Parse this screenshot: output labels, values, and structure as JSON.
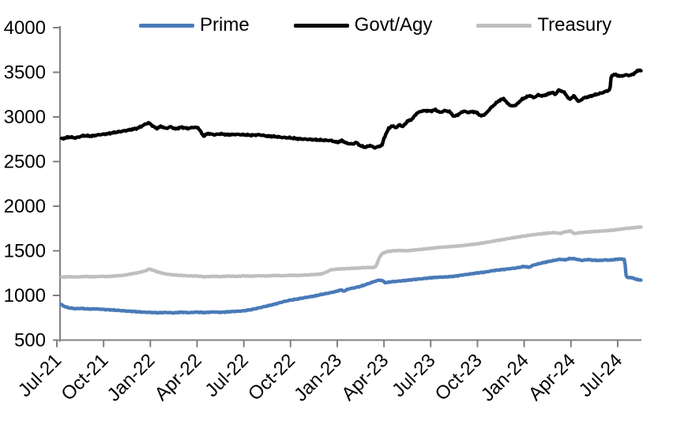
{
  "chart_data": {
    "type": "line",
    "title": "",
    "x_encoding": "months since Jul-21",
    "x_axis": {
      "range_months": [
        0,
        37.5
      ],
      "ticks": [
        {
          "label": "Jul-21",
          "month": 0
        },
        {
          "label": "Oct-21",
          "month": 3
        },
        {
          "label": "Jan-22",
          "month": 6
        },
        {
          "label": "Apr-22",
          "month": 9
        },
        {
          "label": "Jul-22",
          "month": 12
        },
        {
          "label": "Oct-22",
          "month": 15
        },
        {
          "label": "Jan-23",
          "month": 18
        },
        {
          "label": "Apr-23",
          "month": 21
        },
        {
          "label": "Jul-23",
          "month": 24
        },
        {
          "label": "Oct-23",
          "month": 27
        },
        {
          "label": "Jan-24",
          "month": 30
        },
        {
          "label": "Apr-24",
          "month": 33
        },
        {
          "label": "Jul-24",
          "month": 36
        }
      ]
    },
    "y_axis": {
      "min": 500,
      "max": 4000,
      "step": 500,
      "ticks": [
        {
          "label": "500",
          "value": 500
        },
        {
          "label": "1000",
          "value": 1000
        },
        {
          "label": "1500",
          "value": 1500
        },
        {
          "label": "2000",
          "value": 2000
        },
        {
          "label": "2500",
          "value": 2500
        },
        {
          "label": "3000",
          "value": 3000
        },
        {
          "label": "3500",
          "value": 3500
        },
        {
          "label": "4000",
          "value": 4000
        }
      ]
    },
    "grid": "off",
    "legend": {
      "position": "top",
      "items": [
        {
          "label": "Prime",
          "color": "#4a7ab8"
        },
        {
          "label": "Govt/Agy",
          "color": "#000000"
        },
        {
          "label": "Treasury",
          "color": "#bfbfbf"
        }
      ]
    },
    "axis_color": "#808080",
    "series": [
      {
        "name": "Prime",
        "color": "#4a7ab8",
        "points": [
          [
            0.3,
            895
          ],
          [
            0.5,
            875
          ],
          [
            0.8,
            860
          ],
          [
            1.2,
            852
          ],
          [
            1.6,
            855
          ],
          [
            2,
            848
          ],
          [
            2.5,
            850
          ],
          [
            3,
            843
          ],
          [
            3.5,
            838
          ],
          [
            4,
            832
          ],
          [
            4.5,
            825
          ],
          [
            5,
            820
          ],
          [
            5.5,
            813
          ],
          [
            6,
            810
          ],
          [
            6.5,
            806
          ],
          [
            7,
            810
          ],
          [
            7.5,
            805
          ],
          [
            8,
            812
          ],
          [
            8.5,
            807
          ],
          [
            9,
            813
          ],
          [
            9.5,
            808
          ],
          [
            10,
            815
          ],
          [
            10.5,
            811
          ],
          [
            11,
            817
          ],
          [
            11.5,
            822
          ],
          [
            12,
            828
          ],
          [
            12.5,
            842
          ],
          [
            13,
            862
          ],
          [
            13.5,
            882
          ],
          [
            14,
            903
          ],
          [
            14.5,
            928
          ],
          [
            15,
            948
          ],
          [
            15.5,
            962
          ],
          [
            16,
            978
          ],
          [
            16.5,
            992
          ],
          [
            17,
            1012
          ],
          [
            17.5,
            1028
          ],
          [
            18,
            1048
          ],
          [
            18.2,
            1062
          ],
          [
            18.45,
            1048
          ],
          [
            18.7,
            1072
          ],
          [
            19,
            1082
          ],
          [
            19.5,
            1102
          ],
          [
            20,
            1132
          ],
          [
            20.4,
            1158
          ],
          [
            20.7,
            1172
          ],
          [
            20.9,
            1165
          ],
          [
            21.1,
            1142
          ],
          [
            21.4,
            1152
          ],
          [
            21.8,
            1158
          ],
          [
            22.2,
            1165
          ],
          [
            22.6,
            1172
          ],
          [
            23,
            1180
          ],
          [
            23.5,
            1188
          ],
          [
            24,
            1198
          ],
          [
            24.5,
            1204
          ],
          [
            25,
            1208
          ],
          [
            25.5,
            1214
          ],
          [
            26,
            1228
          ],
          [
            26.5,
            1240
          ],
          [
            27,
            1252
          ],
          [
            27.5,
            1262
          ],
          [
            28,
            1278
          ],
          [
            28.5,
            1288
          ],
          [
            29,
            1298
          ],
          [
            29.5,
            1308
          ],
          [
            30,
            1325
          ],
          [
            30.3,
            1315
          ],
          [
            30.6,
            1340
          ],
          [
            31,
            1358
          ],
          [
            31.5,
            1378
          ],
          [
            32,
            1395
          ],
          [
            32.3,
            1405
          ],
          [
            32.6,
            1398
          ],
          [
            33,
            1415
          ],
          [
            33.3,
            1408
          ],
          [
            33.7,
            1392
          ],
          [
            34.1,
            1402
          ],
          [
            34.5,
            1394
          ],
          [
            34.9,
            1392
          ],
          [
            35.2,
            1398
          ],
          [
            35.5,
            1395
          ],
          [
            35.8,
            1402
          ],
          [
            36.1,
            1408
          ],
          [
            36.45,
            1405
          ],
          [
            36.55,
            1205
          ],
          [
            36.8,
            1200
          ],
          [
            37,
            1195
          ],
          [
            37.2,
            1180
          ],
          [
            37.5,
            1172
          ]
        ]
      },
      {
        "name": "Govt/Agy",
        "color": "#000000",
        "points": [
          [
            0.3,
            2755
          ],
          [
            0.8,
            2775
          ],
          [
            1.2,
            2765
          ],
          [
            1.7,
            2790
          ],
          [
            2.2,
            2785
          ],
          [
            2.7,
            2800
          ],
          [
            3.2,
            2810
          ],
          [
            3.7,
            2825
          ],
          [
            4.2,
            2840
          ],
          [
            4.7,
            2855
          ],
          [
            5.2,
            2875
          ],
          [
            5.7,
            2920
          ],
          [
            5.9,
            2935
          ],
          [
            6.1,
            2905
          ],
          [
            6.4,
            2870
          ],
          [
            6.7,
            2895
          ],
          [
            7,
            2870
          ],
          [
            7.3,
            2890
          ],
          [
            7.6,
            2865
          ],
          [
            8,
            2885
          ],
          [
            8.4,
            2870
          ],
          [
            8.8,
            2885
          ],
          [
            9.1,
            2875
          ],
          [
            9.4,
            2785
          ],
          [
            9.7,
            2815
          ],
          [
            10.1,
            2800
          ],
          [
            10.5,
            2810
          ],
          [
            11,
            2800
          ],
          [
            11.5,
            2805
          ],
          [
            12,
            2800
          ],
          [
            12.5,
            2795
          ],
          [
            13,
            2800
          ],
          [
            13.5,
            2785
          ],
          [
            14,
            2780
          ],
          [
            14.5,
            2770
          ],
          [
            15,
            2765
          ],
          [
            15.5,
            2755
          ],
          [
            16,
            2750
          ],
          [
            16.5,
            2745
          ],
          [
            17,
            2740
          ],
          [
            17.6,
            2735
          ],
          [
            18,
            2715
          ],
          [
            18.3,
            2735
          ],
          [
            18.6,
            2705
          ],
          [
            19,
            2695
          ],
          [
            19.2,
            2715
          ],
          [
            19.5,
            2675
          ],
          [
            19.8,
            2660
          ],
          [
            20.1,
            2680
          ],
          [
            20.4,
            2655
          ],
          [
            20.7,
            2670
          ],
          [
            20.9,
            2690
          ],
          [
            21,
            2760
          ],
          [
            21.1,
            2800
          ],
          [
            21.3,
            2870
          ],
          [
            21.5,
            2900
          ],
          [
            21.8,
            2880
          ],
          [
            22,
            2915
          ],
          [
            22.2,
            2890
          ],
          [
            22.5,
            2950
          ],
          [
            22.8,
            2975
          ],
          [
            23.1,
            3040
          ],
          [
            23.4,
            3065
          ],
          [
            23.7,
            3070
          ],
          [
            24,
            3065
          ],
          [
            24.3,
            3080
          ],
          [
            24.6,
            3050
          ],
          [
            24.9,
            3070
          ],
          [
            25.2,
            3060
          ],
          [
            25.5,
            3005
          ],
          [
            25.8,
            3030
          ],
          [
            26.1,
            3065
          ],
          [
            26.4,
            3050
          ],
          [
            26.7,
            3060
          ],
          [
            27,
            3045
          ],
          [
            27.2,
            3010
          ],
          [
            27.5,
            3030
          ],
          [
            27.8,
            3090
          ],
          [
            28.1,
            3140
          ],
          [
            28.4,
            3185
          ],
          [
            28.7,
            3205
          ],
          [
            28.9,
            3155
          ],
          [
            29.2,
            3120
          ],
          [
            29.5,
            3135
          ],
          [
            29.8,
            3190
          ],
          [
            30.1,
            3220
          ],
          [
            30.4,
            3240
          ],
          [
            30.6,
            3215
          ],
          [
            30.9,
            3245
          ],
          [
            31.2,
            3235
          ],
          [
            31.5,
            3255
          ],
          [
            31.8,
            3275
          ],
          [
            32,
            3250
          ],
          [
            32.2,
            3300
          ],
          [
            32.4,
            3290
          ],
          [
            32.6,
            3270
          ],
          [
            32.9,
            3195
          ],
          [
            33.2,
            3235
          ],
          [
            33.5,
            3170
          ],
          [
            33.8,
            3210
          ],
          [
            34.2,
            3230
          ],
          [
            34.6,
            3250
          ],
          [
            35,
            3270
          ],
          [
            35.3,
            3290
          ],
          [
            35.5,
            3305
          ],
          [
            35.6,
            3465
          ],
          [
            35.8,
            3475
          ],
          [
            36,
            3465
          ],
          [
            36.2,
            3455
          ],
          [
            36.5,
            3470
          ],
          [
            36.8,
            3465
          ],
          [
            37,
            3480
          ],
          [
            37.2,
            3505
          ],
          [
            37.35,
            3525
          ],
          [
            37.5,
            3520
          ]
        ]
      },
      {
        "name": "Treasury",
        "color": "#bfbfbf",
        "points": [
          [
            0.3,
            1205
          ],
          [
            0.8,
            1210
          ],
          [
            1.3,
            1206
          ],
          [
            1.8,
            1212
          ],
          [
            2.3,
            1209
          ],
          [
            2.8,
            1214
          ],
          [
            3.3,
            1212
          ],
          [
            3.8,
            1219
          ],
          [
            4.3,
            1226
          ],
          [
            4.8,
            1242
          ],
          [
            5.3,
            1258
          ],
          [
            5.7,
            1276
          ],
          [
            5.9,
            1296
          ],
          [
            6.1,
            1288
          ],
          [
            6.4,
            1268
          ],
          [
            6.7,
            1252
          ],
          [
            7,
            1240
          ],
          [
            7.5,
            1230
          ],
          [
            8,
            1224
          ],
          [
            8.5,
            1219
          ],
          [
            9,
            1217
          ],
          [
            9.5,
            1209
          ],
          [
            10,
            1214
          ],
          [
            10.5,
            1211
          ],
          [
            11,
            1217
          ],
          [
            11.5,
            1213
          ],
          [
            12,
            1219
          ],
          [
            12.5,
            1216
          ],
          [
            13,
            1221
          ],
          [
            13.5,
            1218
          ],
          [
            14,
            1224
          ],
          [
            14.5,
            1221
          ],
          [
            15,
            1227
          ],
          [
            15.5,
            1224
          ],
          [
            16,
            1229
          ],
          [
            16.5,
            1234
          ],
          [
            17,
            1241
          ],
          [
            17.3,
            1262
          ],
          [
            17.6,
            1288
          ],
          [
            18,
            1295
          ],
          [
            18.5,
            1300
          ],
          [
            19,
            1304
          ],
          [
            19.5,
            1309
          ],
          [
            20,
            1314
          ],
          [
            20.3,
            1311
          ],
          [
            20.5,
            1330
          ],
          [
            20.7,
            1424
          ],
          [
            20.9,
            1472
          ],
          [
            21.2,
            1492
          ],
          [
            21.6,
            1500
          ],
          [
            22,
            1504
          ],
          [
            22.5,
            1500
          ],
          [
            23,
            1510
          ],
          [
            23.5,
            1518
          ],
          [
            24,
            1528
          ],
          [
            24.5,
            1538
          ],
          [
            25,
            1544
          ],
          [
            25.5,
            1550
          ],
          [
            26,
            1558
          ],
          [
            26.5,
            1568
          ],
          [
            27,
            1578
          ],
          [
            27.5,
            1592
          ],
          [
            28,
            1608
          ],
          [
            28.5,
            1622
          ],
          [
            29,
            1638
          ],
          [
            29.5,
            1652
          ],
          [
            30,
            1666
          ],
          [
            30.5,
            1678
          ],
          [
            31,
            1688
          ],
          [
            31.5,
            1698
          ],
          [
            32,
            1704
          ],
          [
            32.3,
            1694
          ],
          [
            32.6,
            1712
          ],
          [
            33,
            1722
          ],
          [
            33.2,
            1692
          ],
          [
            33.5,
            1702
          ],
          [
            34,
            1710
          ],
          [
            34.5,
            1716
          ],
          [
            35,
            1722
          ],
          [
            35.5,
            1728
          ],
          [
            36,
            1738
          ],
          [
            36.5,
            1750
          ],
          [
            37,
            1758
          ],
          [
            37.5,
            1768
          ]
        ]
      }
    ]
  }
}
